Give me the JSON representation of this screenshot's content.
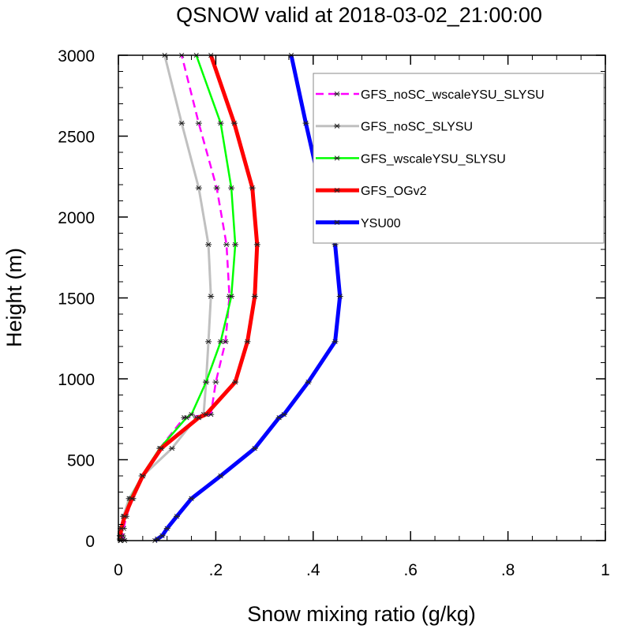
{
  "chart_data": {
    "type": "line",
    "title": "QSNOW valid at 2018-03-02_21:00:00",
    "xlabel": "Snow mixing ratio (g/kg)",
    "ylabel": "Height (m)",
    "xlim": [
      0,
      1
    ],
    "ylim": [
      0,
      3000
    ],
    "xticks": [
      0,
      0.2,
      0.4,
      0.6,
      0.8,
      1
    ],
    "xtick_labels": [
      "0",
      ".2",
      ".4",
      ".6",
      ".8",
      "1"
    ],
    "yticks": [
      0,
      500,
      1000,
      1500,
      2000,
      2500,
      3000
    ],
    "ytick_labels": [
      "0",
      "500",
      "1000",
      "1500",
      "2000",
      "2500",
      "3000"
    ],
    "grid": false,
    "legend_position": "top-right",
    "series": [
      {
        "name": "GFS_noSC_wscaleYSU_SLYSU",
        "color": "#ff00ff",
        "dash": true,
        "width": 2.5,
        "x": [
          0.013,
          0.01,
          0.009,
          0.011,
          0.016,
          0.03,
          0.05,
          0.085,
          0.135,
          0.19,
          0.2,
          0.22,
          0.228,
          0.222,
          0.202,
          0.165,
          0.13
        ],
        "y": [
          0,
          10,
          30,
          75,
          150,
          260,
          400,
          570,
          760,
          780,
          980,
          1230,
          1510,
          1830,
          2180,
          2580,
          3000
        ]
      },
      {
        "name": "GFS_noSC_SLYSU",
        "color": "#c0c0c0",
        "dash": false,
        "width": 3,
        "x": [
          0.004,
          0.003,
          0.003,
          0.005,
          0.01,
          0.022,
          0.05,
          0.11,
          0.16,
          0.175,
          0.18,
          0.185,
          0.19,
          0.185,
          0.165,
          0.13,
          0.095
        ],
        "y": [
          0,
          10,
          30,
          75,
          150,
          260,
          400,
          570,
          760,
          780,
          980,
          1230,
          1510,
          1830,
          2180,
          2580,
          3000
        ]
      },
      {
        "name": "GFS_wscaleYSU_SLYSU",
        "color": "#00ff00",
        "dash": false,
        "width": 2.5,
        "x": [
          0.005,
          0.004,
          0.004,
          0.006,
          0.012,
          0.025,
          0.048,
          0.085,
          0.14,
          0.15,
          0.18,
          0.21,
          0.232,
          0.24,
          0.232,
          0.21,
          0.16
        ],
        "y": [
          0,
          10,
          30,
          75,
          150,
          260,
          400,
          570,
          760,
          780,
          980,
          1230,
          1510,
          1830,
          2180,
          2580,
          3000
        ]
      },
      {
        "name": "GFS_OGv2",
        "color": "#ff0000",
        "dash": false,
        "width": 5,
        "x": [
          0.004,
          0.004,
          0.004,
          0.006,
          0.013,
          0.028,
          0.05,
          0.088,
          0.165,
          0.18,
          0.24,
          0.265,
          0.28,
          0.285,
          0.275,
          0.238,
          0.19
        ],
        "y": [
          0,
          10,
          30,
          75,
          150,
          260,
          400,
          570,
          760,
          780,
          980,
          1230,
          1510,
          1830,
          2180,
          2580,
          3000
        ]
      },
      {
        "name": "YSU00",
        "color": "#0000ff",
        "dash": false,
        "width": 5,
        "x": [
          0.075,
          0.08,
          0.09,
          0.1,
          0.12,
          0.15,
          0.21,
          0.28,
          0.33,
          0.34,
          0.39,
          0.445,
          0.455,
          0.445,
          0.415,
          0.385,
          0.355
        ],
        "y": [
          0,
          10,
          30,
          75,
          150,
          260,
          400,
          570,
          760,
          780,
          980,
          1230,
          1510,
          1830,
          2180,
          2580,
          3000
        ]
      }
    ]
  }
}
